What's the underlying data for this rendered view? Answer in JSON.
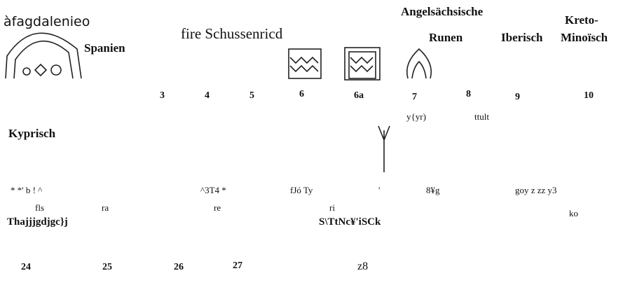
{
  "top_left": {
    "title": "àfagdalenieo",
    "label": "Spanien"
  },
  "center_title": "fire Schussenricd",
  "scripts": [
    "Angelsächsische",
    "Kreto-",
    "Runen",
    "Iberisch",
    "Minoïsch"
  ],
  "column_numbers": [
    "3",
    "4",
    "5",
    "6",
    "6a",
    "7",
    "8",
    "9",
    "10"
  ],
  "notes": [
    "y{yr)",
    "ttult"
  ],
  "section_kyprisch": "Kyprisch",
  "sign_row": [
    "* *' b ! ^",
    "^3T4 *",
    "fJó Ty",
    "'",
    "8¥g",
    "goy z zz y3"
  ],
  "syllables": [
    "fls",
    "ra",
    "re",
    "ri",
    "ko"
  ],
  "section_lines": [
    "Thajjjgdjgc}j",
    "S\\TtNc¥'iSCk"
  ],
  "bottom_numbers": [
    "24",
    "25",
    "26",
    "27",
    "z8"
  ]
}
